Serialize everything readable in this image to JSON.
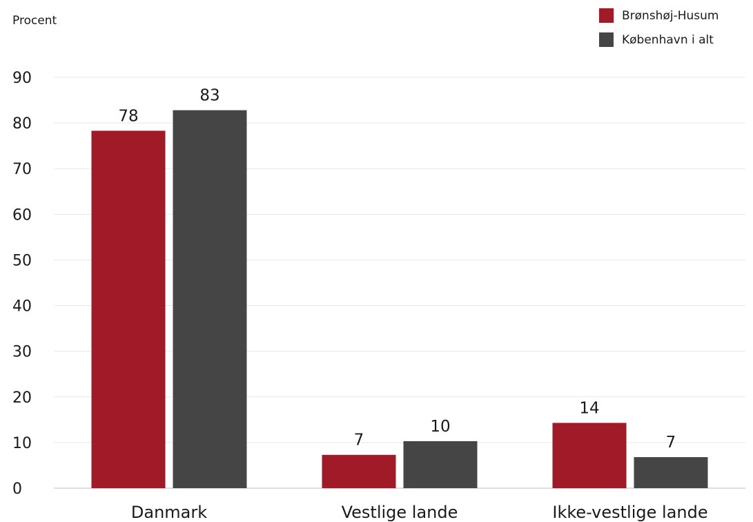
{
  "chart_data": {
    "type": "bar",
    "unit_label": "Procent",
    "categories": [
      "Danmark",
      "Vestlige lande",
      "Ikke-vestlige lande"
    ],
    "series": [
      {
        "name": "Brønshøj-Husum",
        "color": "#a11a28",
        "values": [
          78,
          7,
          14
        ],
        "labels": [
          "78",
          "7",
          "14"
        ],
        "plot_values": [
          78.3,
          7.3,
          14.3
        ]
      },
      {
        "name": "København i alt",
        "color": "#454545",
        "values": [
          83,
          10,
          7
        ],
        "labels": [
          "83",
          "10",
          "7"
        ],
        "plot_values": [
          82.8,
          10.3,
          6.8
        ]
      }
    ],
    "ylim": [
      0,
      90
    ],
    "yticks": [
      0,
      10,
      20,
      30,
      40,
      50,
      60,
      70,
      80,
      90
    ],
    "grid": true,
    "legend_position": "top-right"
  }
}
